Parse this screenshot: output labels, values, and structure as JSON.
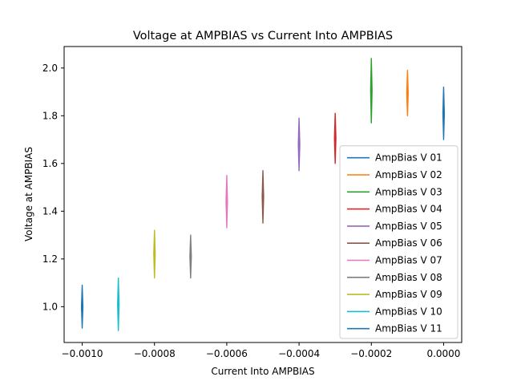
{
  "chart_data": {
    "type": "line",
    "title": "Voltage at AMPBIAS vs Current Into AMPBIAS",
    "xlabel": "Current Into AMPBIAS",
    "ylabel": "Voltage at AMPBIAS",
    "xlim": [
      -0.00105,
      5e-05
    ],
    "ylim": [
      0.85,
      2.09
    ],
    "xticks": [
      -0.001,
      -0.0008,
      -0.0006,
      -0.0004,
      -0.0002,
      0.0
    ],
    "xtick_labels": [
      "−0.0010",
      "−0.0008",
      "−0.0006",
      "−0.0004",
      "−0.0002",
      "0.0000"
    ],
    "yticks": [
      1.0,
      1.2,
      1.4,
      1.6,
      1.8,
      2.0
    ],
    "ytick_labels": [
      "1.0",
      "1.2",
      "1.4",
      "1.6",
      "1.8",
      "2.0"
    ],
    "grid": false,
    "legend_position": "lower-right",
    "series": [
      {
        "name": "AmpBias V 01",
        "color": "#1f77b4",
        "x": 0.0,
        "y_min": 1.7,
        "y_max": 1.92
      },
      {
        "name": "AmpBias V 02",
        "color": "#ff7f0e",
        "x": -0.0001,
        "y_min": 1.8,
        "y_max": 1.99
      },
      {
        "name": "AmpBias V 03",
        "color": "#2ca02c",
        "x": -0.0002,
        "y_min": 1.77,
        "y_max": 2.04
      },
      {
        "name": "AmpBias V 04",
        "color": "#d62728",
        "x": -0.0003,
        "y_min": 1.6,
        "y_max": 1.81
      },
      {
        "name": "AmpBias V 05",
        "color": "#9467bd",
        "x": -0.0004,
        "y_min": 1.57,
        "y_max": 1.79
      },
      {
        "name": "AmpBias V 06",
        "color": "#8c564b",
        "x": -0.0005,
        "y_min": 1.35,
        "y_max": 1.57
      },
      {
        "name": "AmpBias V 07",
        "color": "#e377c2",
        "x": -0.0006,
        "y_min": 1.33,
        "y_max": 1.55
      },
      {
        "name": "AmpBias V 08",
        "color": "#7f7f7f",
        "x": -0.0007,
        "y_min": 1.12,
        "y_max": 1.3
      },
      {
        "name": "AmpBias V 09",
        "color": "#bcbd22",
        "x": -0.0008,
        "y_min": 1.12,
        "y_max": 1.32
      },
      {
        "name": "AmpBias V 10",
        "color": "#17becf",
        "x": -0.0009,
        "y_min": 0.9,
        "y_max": 1.12
      },
      {
        "name": "AmpBias V 11",
        "color": "#1f77b4",
        "x": -0.001,
        "y_min": 0.91,
        "y_max": 1.09
      }
    ]
  }
}
